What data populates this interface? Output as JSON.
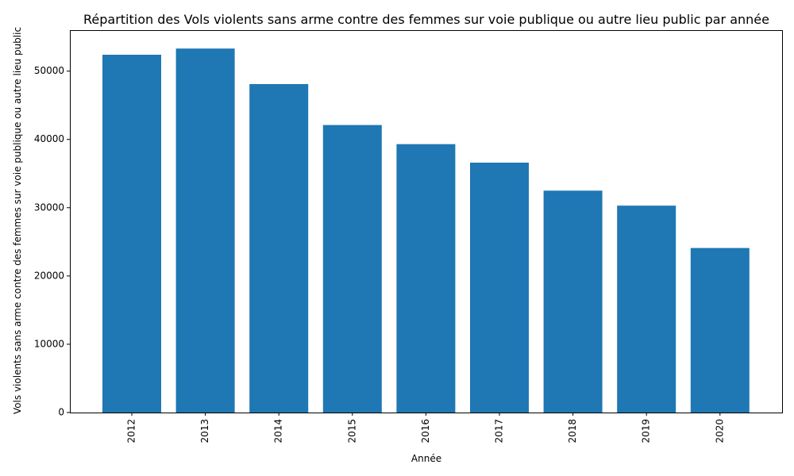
{
  "chart_data": {
    "type": "bar",
    "title": "Répartition des Vols violents sans arme contre des femmes sur voie publique ou autre lieu public par année",
    "xlabel": "Année",
    "ylabel": "Vols violents sans arme contre des femmes sur voie publique ou autre lieu public",
    "categories": [
      "2012",
      "2013",
      "2014",
      "2015",
      "2016",
      "2017",
      "2018",
      "2019",
      "2020"
    ],
    "values": [
      52400,
      53300,
      48100,
      42100,
      39300,
      36600,
      32500,
      30300,
      24100
    ],
    "ylim": [
      0,
      56000
    ],
    "yticks": [
      0,
      10000,
      20000,
      30000,
      40000,
      50000
    ],
    "ytick_labels": [
      "0",
      "10000",
      "20000",
      "30000",
      "40000",
      "50000"
    ],
    "bar_color": "#1f77b4",
    "grid": false,
    "legend": "none"
  }
}
